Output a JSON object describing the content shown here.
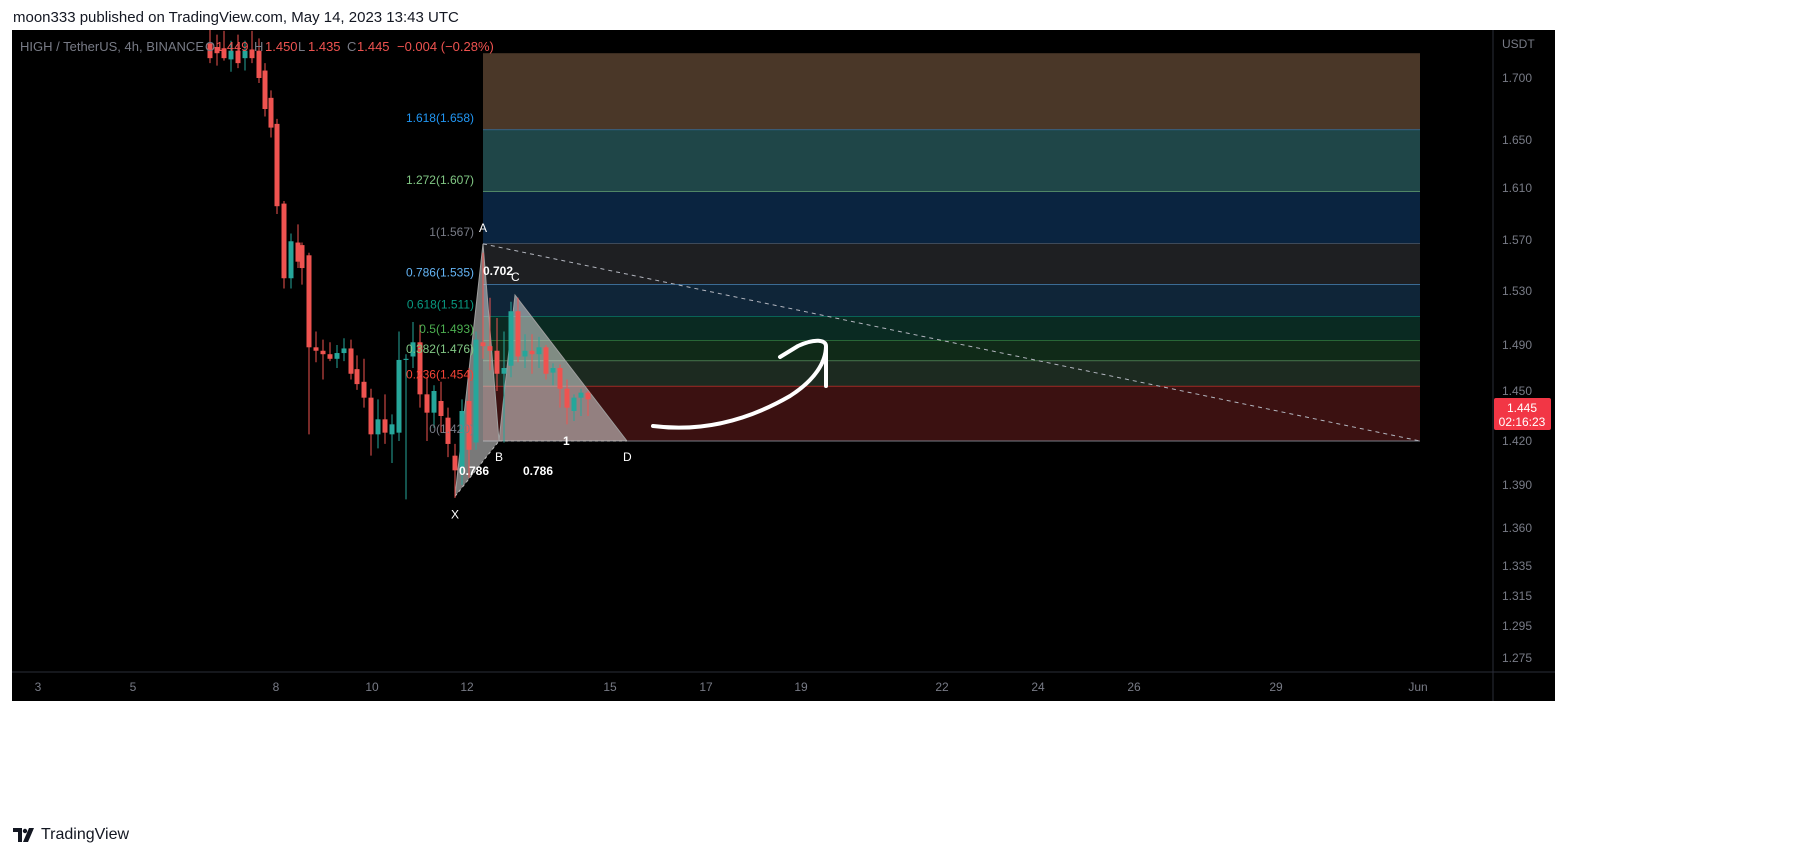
{
  "header": {
    "published": "moon333 published on TradingView.com, May 14, 2023 13:43 UTC"
  },
  "footer": {
    "brand": "TradingView",
    "logo_icon": "tradingview-logo-icon"
  },
  "legend": {
    "symbol": "HIGH / TetherUS, 4h, BINANCE",
    "o_label": "O",
    "o": "1.449",
    "h_label": "H",
    "h": "1.450",
    "l_label": "L",
    "l": "1.435",
    "c_label": "C",
    "c": "1.445",
    "change": "−0.004 (−0.28%)"
  },
  "price_label": {
    "price": "1.445",
    "countdown": "02:16:23"
  },
  "colors": {
    "up": "#26a69a",
    "down": "#ef5350",
    "background": "#000000",
    "axis_text": "#787b86",
    "price_badge": "#f23645"
  },
  "chart_data": {
    "type": "candlestick",
    "currency": "USDT",
    "ylim": [
      1.265,
      1.72
    ],
    "y_ticks": [
      "1.700",
      "1.650",
      "1.610",
      "1.570",
      "1.530",
      "1.490",
      "1.450",
      "1.420",
      "1.390",
      "1.360",
      "1.335",
      "1.315",
      "1.295",
      "1.275"
    ],
    "x_ticks": [
      "3",
      "5",
      "8",
      "10",
      "12",
      "15",
      "17",
      "19",
      "22",
      "24",
      "26",
      "29",
      "Jun"
    ],
    "candles": [
      {
        "x": 210,
        "o": 1.728,
        "h": 1.74,
        "l": 1.712,
        "c": 1.716
      },
      {
        "x": 217,
        "o": 1.725,
        "h": 1.735,
        "l": 1.71,
        "c": 1.72
      },
      {
        "x": 224,
        "o": 1.724,
        "h": 1.738,
        "l": 1.714,
        "c": 1.716
      },
      {
        "x": 231,
        "o": 1.715,
        "h": 1.73,
        "l": 1.705,
        "c": 1.722
      },
      {
        "x": 238,
        "o": 1.722,
        "h": 1.735,
        "l": 1.708,
        "c": 1.712
      },
      {
        "x": 245,
        "o": 1.716,
        "h": 1.73,
        "l": 1.706,
        "c": 1.722
      },
      {
        "x": 252,
        "o": 1.723,
        "h": 1.738,
        "l": 1.712,
        "c": 1.716
      },
      {
        "x": 259,
        "o": 1.722,
        "h": 1.732,
        "l": 1.696,
        "c": 1.7
      },
      {
        "x": 265,
        "o": 1.706,
        "h": 1.712,
        "l": 1.669,
        "c": 1.675
      },
      {
        "x": 271,
        "o": 1.684,
        "h": 1.69,
        "l": 1.652,
        "c": 1.66
      },
      {
        "x": 277,
        "o": 1.663,
        "h": 1.667,
        "l": 1.59,
        "c": 1.596
      },
      {
        "x": 284,
        "o": 1.598,
        "h": 1.6,
        "l": 1.532,
        "c": 1.54
      },
      {
        "x": 291,
        "o": 1.54,
        "h": 1.575,
        "l": 1.532,
        "c": 1.569
      },
      {
        "x": 298,
        "o": 1.568,
        "h": 1.582,
        "l": 1.548,
        "c": 1.553
      },
      {
        "x": 302,
        "o": 1.566,
        "h": 1.568,
        "l": 1.535,
        "c": 1.548
      },
      {
        "x": 309,
        "o": 1.558,
        "h": 1.56,
        "l": 1.424,
        "c": 1.488
      },
      {
        "x": 316,
        "o": 1.488,
        "h": 1.5,
        "l": 1.475,
        "c": 1.485
      },
      {
        "x": 323,
        "o": 1.485,
        "h": 1.494,
        "l": 1.46,
        "c": 1.482
      },
      {
        "x": 330,
        "o": 1.482,
        "h": 1.492,
        "l": 1.476,
        "c": 1.478
      },
      {
        "x": 337,
        "o": 1.478,
        "h": 1.49,
        "l": 1.47,
        "c": 1.483
      },
      {
        "x": 344,
        "o": 1.483,
        "h": 1.495,
        "l": 1.476,
        "c": 1.487
      },
      {
        "x": 351,
        "o": 1.487,
        "h": 1.494,
        "l": 1.46,
        "c": 1.465
      },
      {
        "x": 357,
        "o": 1.469,
        "h": 1.481,
        "l": 1.451,
        "c": 1.456
      },
      {
        "x": 364,
        "o": 1.458,
        "h": 1.478,
        "l": 1.44,
        "c": 1.446
      },
      {
        "x": 371,
        "o": 1.446,
        "h": 1.452,
        "l": 1.41,
        "c": 1.424
      },
      {
        "x": 378,
        "o": 1.424,
        "h": 1.445,
        "l": 1.415,
        "c": 1.433
      },
      {
        "x": 385,
        "o": 1.433,
        "h": 1.448,
        "l": 1.418,
        "c": 1.425
      },
      {
        "x": 392,
        "o": 1.424,
        "h": 1.436,
        "l": 1.405,
        "c": 1.43
      },
      {
        "x": 399,
        "o": 1.425,
        "h": 1.5,
        "l": 1.42,
        "c": 1.477
      },
      {
        "x": 406,
        "o": 1.477,
        "h": 1.482,
        "l": 1.38,
        "c": 1.478
      },
      {
        "x": 413,
        "o": 1.48,
        "h": 1.507,
        "l": 1.47,
        "c": 1.492
      },
      {
        "x": 420,
        "o": 1.492,
        "h": 1.505,
        "l": 1.44,
        "c": 1.448
      },
      {
        "x": 427,
        "o": 1.448,
        "h": 1.462,
        "l": 1.42,
        "c": 1.437
      },
      {
        "x": 434,
        "o": 1.437,
        "h": 1.455,
        "l": 1.428,
        "c": 1.45
      },
      {
        "x": 441,
        "o": 1.444,
        "h": 1.458,
        "l": 1.425,
        "c": 1.435
      },
      {
        "x": 448,
        "o": 1.434,
        "h": 1.44,
        "l": 1.409,
        "c": 1.418
      },
      {
        "x": 455,
        "o": 1.41,
        "h": 1.418,
        "l": 1.381,
        "c": 1.4
      },
      {
        "x": 462,
        "o": 1.402,
        "h": 1.445,
        "l": 1.39,
        "c": 1.438
      },
      {
        "x": 469,
        "o": 1.444,
        "h": 1.47,
        "l": 1.395,
        "c": 1.414
      },
      {
        "x": 476,
        "o": 1.419,
        "h": 1.5,
        "l": 1.414,
        "c": 1.494
      },
      {
        "x": 483,
        "o": 1.492,
        "h": 1.56,
        "l": 1.478,
        "c": 1.489
      },
      {
        "x": 490,
        "o": 1.489,
        "h": 1.525,
        "l": 1.468,
        "c": 1.485
      },
      {
        "x": 497,
        "o": 1.485,
        "h": 1.51,
        "l": 1.45,
        "c": 1.465
      },
      {
        "x": 504,
        "o": 1.465,
        "h": 1.5,
        "l": 1.419,
        "c": 1.47
      },
      {
        "x": 511,
        "o": 1.472,
        "h": 1.522,
        "l": 1.462,
        "c": 1.515
      },
      {
        "x": 518,
        "o": 1.515,
        "h": 1.525,
        "l": 1.475,
        "c": 1.48
      },
      {
        "x": 525,
        "o": 1.48,
        "h": 1.498,
        "l": 1.47,
        "c": 1.485
      },
      {
        "x": 532,
        "o": 1.485,
        "h": 1.498,
        "l": 1.465,
        "c": 1.482
      },
      {
        "x": 539,
        "o": 1.482,
        "h": 1.496,
        "l": 1.47,
        "c": 1.488
      },
      {
        "x": 546,
        "o": 1.488,
        "h": 1.49,
        "l": 1.46,
        "c": 1.465
      },
      {
        "x": 553,
        "o": 1.466,
        "h": 1.474,
        "l": 1.455,
        "c": 1.47
      },
      {
        "x": 560,
        "o": 1.47,
        "h": 1.473,
        "l": 1.44,
        "c": 1.452
      },
      {
        "x": 567,
        "o": 1.452,
        "h": 1.46,
        "l": 1.43,
        "c": 1.44
      },
      {
        "x": 574,
        "o": 1.438,
        "h": 1.448,
        "l": 1.432,
        "c": 1.446
      },
      {
        "x": 581,
        "o": 1.446,
        "h": 1.452,
        "l": 1.435,
        "c": 1.449
      },
      {
        "x": 588,
        "o": 1.449,
        "h": 1.45,
        "l": 1.435,
        "c": 1.445
      }
    ],
    "fib_levels": [
      {
        "label": "1.618(1.658)",
        "value": 1.658,
        "color": "#2196f3",
        "zone_to": 1.72,
        "zone_color": "#4a3728"
      },
      {
        "label": "1.272(1.607)",
        "value": 1.607,
        "color": "#81c784",
        "zone_to": 1.658,
        "zone_color": "#1f4648"
      },
      {
        "label": "1(1.567)",
        "value": 1.567,
        "color": "#787b86",
        "zone_to": 1.607,
        "zone_color": "#0a2440"
      },
      {
        "label": "0.786(1.535)",
        "value": 1.535,
        "color": "#64b5f6",
        "zone_to": 1.567,
        "zone_color": "#1e1f22"
      },
      {
        "label": "0.618(1.511)",
        "value": 1.511,
        "color": "#089981",
        "zone_to": 1.535,
        "zone_color": "#0f2538"
      },
      {
        "label": "0.5(1.493)",
        "value": 1.493,
        "color": "#4caf50",
        "zone_to": 1.511,
        "zone_color": "#0a2a22"
      },
      {
        "label": "0.382(1.476)",
        "value": 1.476,
        "color": "#81c784",
        "zone_to": 1.493,
        "zone_color": "#102a18"
      },
      {
        "label": "0.236(1.454)",
        "value": 1.454,
        "color": "#f44336",
        "zone_to": 1.476,
        "zone_color": "#1c2a20"
      },
      {
        "label": "0(1.420)",
        "value": 1.42,
        "color": "#787b86",
        "zone_to": 1.454,
        "zone_color": "#3b1111"
      }
    ],
    "harmonic_pattern": {
      "points": [
        {
          "name": "X",
          "x": 455,
          "y": 1.382
        },
        {
          "name": "A",
          "x": 483,
          "y": 1.567
        },
        {
          "name": "B",
          "x": 499,
          "y": 1.42
        },
        {
          "name": "C",
          "x": 515,
          "y": 1.527
        },
        {
          "name": "D",
          "x": 627,
          "y": 1.42
        }
      ],
      "ratios": [
        "0.702",
        "0.786",
        "0.786",
        "1"
      ]
    },
    "trendline": {
      "from": {
        "x": 483,
        "y": 1.567
      },
      "to": {
        "x": 1420,
        "y": 1.42
      }
    }
  }
}
